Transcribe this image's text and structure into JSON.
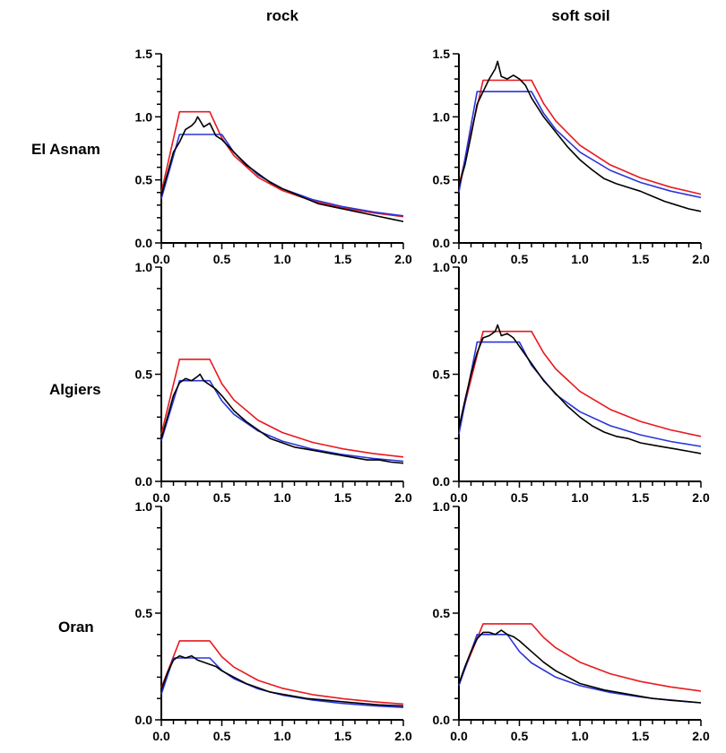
{
  "column_titles": [
    "rock",
    "soft soil"
  ],
  "row_titles": [
    "El Asnam",
    "Algiers",
    "Oran"
  ],
  "colors": {
    "black": "#000000",
    "red": "#e8191e",
    "blue": "#2a35d9"
  },
  "chart_data": [
    {
      "type": "line",
      "row": 0,
      "col": 0,
      "xlim": [
        0,
        2
      ],
      "ylim": [
        0,
        1.5
      ],
      "xticks": [
        "0.0",
        "0.5",
        "1.0",
        "1.5",
        "2.0"
      ],
      "yticks": [
        "0.0",
        "0.5",
        "1.0",
        "1.5"
      ],
      "ytick_values": [
        0,
        0.5,
        1.0,
        1.5
      ],
      "series": [
        {
          "color": "red",
          "x": [
            0,
            0.15,
            0.4,
            0.5,
            0.6,
            0.8,
            1.0,
            1.25,
            1.5,
            1.75,
            2.0
          ],
          "y": [
            0.4,
            1.04,
            1.04,
            0.832,
            0.693,
            0.52,
            0.416,
            0.333,
            0.277,
            0.238,
            0.208
          ]
        },
        {
          "color": "blue",
          "x": [
            0,
            0.15,
            0.5,
            0.6,
            0.8,
            1.0,
            1.25,
            1.5,
            1.75,
            2.0
          ],
          "y": [
            0.35,
            0.86,
            0.86,
            0.717,
            0.538,
            0.43,
            0.344,
            0.287,
            0.246,
            0.215
          ]
        },
        {
          "color": "black",
          "x": [
            0,
            0.05,
            0.1,
            0.15,
            0.2,
            0.25,
            0.28,
            0.3,
            0.32,
            0.35,
            0.4,
            0.45,
            0.5,
            0.6,
            0.7,
            0.8,
            0.9,
            1.0,
            1.1,
            1.2,
            1.3,
            1.4,
            1.5,
            1.6,
            1.7,
            1.8,
            1.9,
            2.0
          ],
          "y": [
            0.38,
            0.55,
            0.72,
            0.8,
            0.9,
            0.93,
            0.96,
            1.0,
            0.97,
            0.92,
            0.95,
            0.85,
            0.82,
            0.72,
            0.62,
            0.55,
            0.48,
            0.43,
            0.39,
            0.35,
            0.31,
            0.29,
            0.27,
            0.25,
            0.23,
            0.21,
            0.19,
            0.17
          ]
        }
      ]
    },
    {
      "type": "line",
      "row": 0,
      "col": 1,
      "xlim": [
        0,
        2
      ],
      "ylim": [
        0,
        1.5
      ],
      "xticks": [
        "0.0",
        "0.5",
        "1.0",
        "1.5",
        "2.0"
      ],
      "yticks": [
        "0.0",
        "0.5",
        "1.0",
        "1.5"
      ],
      "ytick_values": [
        0,
        0.5,
        1.0,
        1.5
      ],
      "series": [
        {
          "color": "red",
          "x": [
            0,
            0.2,
            0.6,
            0.7,
            0.8,
            1.0,
            1.25,
            1.5,
            1.75,
            2.0
          ],
          "y": [
            0.45,
            1.29,
            1.29,
            1.106,
            0.968,
            0.774,
            0.619,
            0.516,
            0.442,
            0.387
          ]
        },
        {
          "color": "blue",
          "x": [
            0,
            0.15,
            0.6,
            0.7,
            0.8,
            1.0,
            1.25,
            1.5,
            1.75,
            2.0
          ],
          "y": [
            0.4,
            1.2,
            1.2,
            1.029,
            0.9,
            0.72,
            0.576,
            0.48,
            0.411,
            0.36
          ]
        },
        {
          "color": "black",
          "x": [
            0,
            0.05,
            0.1,
            0.15,
            0.2,
            0.25,
            0.3,
            0.32,
            0.35,
            0.4,
            0.45,
            0.5,
            0.55,
            0.6,
            0.7,
            0.8,
            0.9,
            1.0,
            1.1,
            1.2,
            1.3,
            1.4,
            1.5,
            1.6,
            1.7,
            1.8,
            1.9,
            2.0
          ],
          "y": [
            0.45,
            0.62,
            0.85,
            1.1,
            1.2,
            1.3,
            1.38,
            1.44,
            1.32,
            1.3,
            1.33,
            1.3,
            1.25,
            1.15,
            1.0,
            0.88,
            0.76,
            0.66,
            0.58,
            0.51,
            0.47,
            0.44,
            0.41,
            0.37,
            0.33,
            0.3,
            0.27,
            0.25
          ]
        }
      ]
    },
    {
      "type": "line",
      "row": 1,
      "col": 0,
      "xlim": [
        0,
        2
      ],
      "ylim": [
        0,
        1
      ],
      "xticks": [
        "0.0",
        "0.5",
        "1.0",
        "1.5",
        "2.0"
      ],
      "yticks": [
        "0.0",
        "0.5",
        "1.0"
      ],
      "ytick_values": [
        0,
        0.5,
        1.0
      ],
      "series": [
        {
          "color": "red",
          "x": [
            0,
            0.15,
            0.4,
            0.5,
            0.6,
            0.8,
            1.0,
            1.25,
            1.5,
            1.75,
            2.0
          ],
          "y": [
            0.22,
            0.57,
            0.57,
            0.456,
            0.38,
            0.285,
            0.228,
            0.182,
            0.152,
            0.13,
            0.114
          ]
        },
        {
          "color": "blue",
          "x": [
            0,
            0.15,
            0.4,
            0.5,
            0.6,
            0.8,
            1.0,
            1.25,
            1.5,
            1.75,
            2.0
          ],
          "y": [
            0.19,
            0.47,
            0.47,
            0.376,
            0.313,
            0.235,
            0.188,
            0.15,
            0.125,
            0.107,
            0.094
          ]
        },
        {
          "color": "black",
          "x": [
            0,
            0.05,
            0.1,
            0.15,
            0.2,
            0.25,
            0.3,
            0.32,
            0.35,
            0.4,
            0.45,
            0.5,
            0.6,
            0.7,
            0.8,
            0.9,
            1.0,
            1.1,
            1.2,
            1.3,
            1.4,
            1.5,
            1.6,
            1.7,
            1.8,
            1.9,
            2.0
          ],
          "y": [
            0.2,
            0.3,
            0.4,
            0.46,
            0.48,
            0.47,
            0.49,
            0.5,
            0.47,
            0.45,
            0.43,
            0.4,
            0.33,
            0.28,
            0.24,
            0.2,
            0.18,
            0.16,
            0.15,
            0.14,
            0.13,
            0.12,
            0.11,
            0.1,
            0.1,
            0.09,
            0.085
          ]
        }
      ]
    },
    {
      "type": "line",
      "row": 1,
      "col": 1,
      "xlim": [
        0,
        2
      ],
      "ylim": [
        0,
        1
      ],
      "xticks": [
        "0.0",
        "0.5",
        "1.0",
        "1.5",
        "2.0"
      ],
      "yticks": [
        "0.0",
        "0.5",
        "1.0"
      ],
      "ytick_values": [
        0,
        0.5,
        1.0
      ],
      "series": [
        {
          "color": "red",
          "x": [
            0,
            0.2,
            0.6,
            0.7,
            0.8,
            1.0,
            1.25,
            1.5,
            1.75,
            2.0
          ],
          "y": [
            0.25,
            0.7,
            0.7,
            0.6,
            0.525,
            0.42,
            0.336,
            0.28,
            0.24,
            0.21
          ]
        },
        {
          "color": "blue",
          "x": [
            0,
            0.15,
            0.5,
            0.6,
            0.8,
            1.0,
            1.25,
            1.5,
            1.75,
            2.0
          ],
          "y": [
            0.22,
            0.65,
            0.65,
            0.542,
            0.406,
            0.325,
            0.26,
            0.217,
            0.186,
            0.163
          ]
        },
        {
          "color": "black",
          "x": [
            0,
            0.05,
            0.1,
            0.15,
            0.2,
            0.25,
            0.3,
            0.32,
            0.35,
            0.4,
            0.45,
            0.5,
            0.6,
            0.7,
            0.8,
            0.9,
            1.0,
            1.1,
            1.2,
            1.3,
            1.4,
            1.5,
            1.6,
            1.7,
            1.8,
            1.9,
            2.0
          ],
          "y": [
            0.25,
            0.38,
            0.5,
            0.6,
            0.67,
            0.68,
            0.7,
            0.73,
            0.68,
            0.69,
            0.67,
            0.63,
            0.55,
            0.47,
            0.41,
            0.35,
            0.3,
            0.26,
            0.23,
            0.21,
            0.2,
            0.18,
            0.17,
            0.16,
            0.15,
            0.14,
            0.13
          ]
        }
      ]
    },
    {
      "type": "line",
      "row": 2,
      "col": 0,
      "xlim": [
        0,
        2
      ],
      "ylim": [
        0,
        1
      ],
      "xticks": [
        "0.0",
        "0.5",
        "1.0",
        "1.5",
        "2.0"
      ],
      "yticks": [
        "0.0",
        "0.5",
        "1.0"
      ],
      "ytick_values": [
        0,
        0.5,
        1.0
      ],
      "series": [
        {
          "color": "red",
          "x": [
            0,
            0.15,
            0.4,
            0.5,
            0.6,
            0.8,
            1.0,
            1.25,
            1.5,
            1.75,
            2.0
          ],
          "y": [
            0.15,
            0.37,
            0.37,
            0.296,
            0.247,
            0.185,
            0.148,
            0.118,
            0.099,
            0.085,
            0.074
          ]
        },
        {
          "color": "blue",
          "x": [
            0,
            0.1,
            0.4,
            0.5,
            0.6,
            0.8,
            1.0,
            1.25,
            1.5,
            1.75,
            2.0
          ],
          "y": [
            0.12,
            0.29,
            0.29,
            0.232,
            0.193,
            0.145,
            0.116,
            0.093,
            0.077,
            0.066,
            0.058
          ]
        },
        {
          "color": "black",
          "x": [
            0,
            0.05,
            0.1,
            0.15,
            0.2,
            0.25,
            0.3,
            0.35,
            0.4,
            0.45,
            0.5,
            0.6,
            0.7,
            0.8,
            0.9,
            1.0,
            1.2,
            1.4,
            1.6,
            1.8,
            2.0
          ],
          "y": [
            0.14,
            0.22,
            0.28,
            0.3,
            0.29,
            0.3,
            0.28,
            0.27,
            0.26,
            0.25,
            0.23,
            0.2,
            0.17,
            0.15,
            0.13,
            0.12,
            0.1,
            0.09,
            0.08,
            0.07,
            0.065
          ]
        }
      ]
    },
    {
      "type": "line",
      "row": 2,
      "col": 1,
      "xlim": [
        0,
        2
      ],
      "ylim": [
        0,
        1
      ],
      "xticks": [
        "0.0",
        "0.5",
        "1.0",
        "1.5",
        "2.0"
      ],
      "yticks": [
        "0.0",
        "0.5",
        "1.0"
      ],
      "ytick_values": [
        0,
        0.5,
        1.0
      ],
      "series": [
        {
          "color": "red",
          "x": [
            0,
            0.2,
            0.6,
            0.7,
            0.8,
            1.0,
            1.25,
            1.5,
            1.75,
            2.0
          ],
          "y": [
            0.17,
            0.45,
            0.45,
            0.386,
            0.338,
            0.27,
            0.216,
            0.18,
            0.154,
            0.135
          ]
        },
        {
          "color": "blue",
          "x": [
            0,
            0.15,
            0.4,
            0.5,
            0.6,
            0.8,
            1.0,
            1.25,
            1.5,
            1.75,
            2.0
          ],
          "y": [
            0.16,
            0.4,
            0.4,
            0.32,
            0.267,
            0.2,
            0.16,
            0.128,
            0.107,
            0.091,
            0.08
          ]
        },
        {
          "color": "black",
          "x": [
            0,
            0.05,
            0.1,
            0.15,
            0.2,
            0.25,
            0.3,
            0.35,
            0.4,
            0.45,
            0.5,
            0.6,
            0.7,
            0.8,
            0.9,
            1.0,
            1.2,
            1.4,
            1.6,
            1.8,
            2.0
          ],
          "y": [
            0.17,
            0.25,
            0.32,
            0.38,
            0.41,
            0.41,
            0.4,
            0.42,
            0.4,
            0.39,
            0.37,
            0.32,
            0.27,
            0.23,
            0.2,
            0.17,
            0.14,
            0.12,
            0.1,
            0.09,
            0.08
          ]
        }
      ]
    }
  ]
}
